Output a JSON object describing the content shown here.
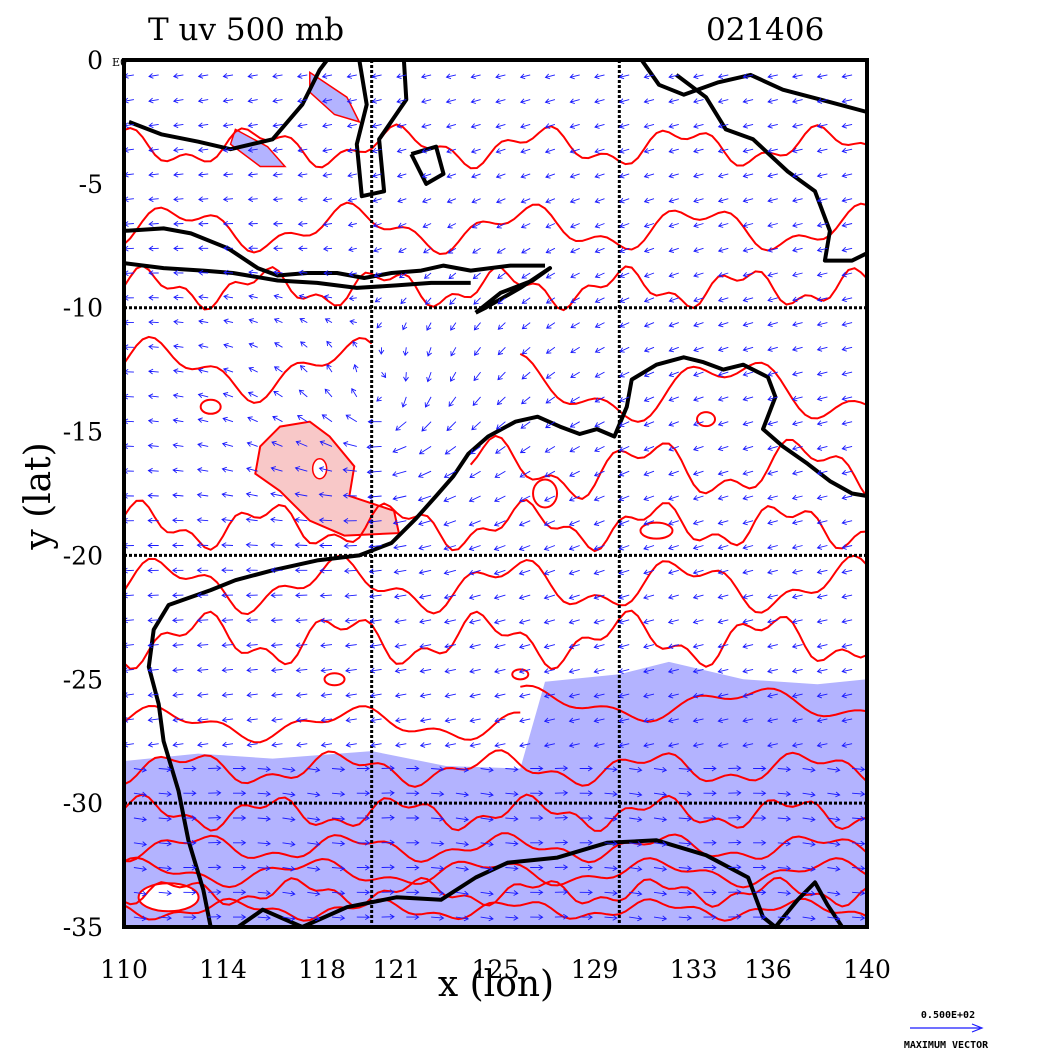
{
  "chart_data": {
    "type": "map-contour-vector",
    "title": "T uv 500 mb",
    "timestamp": "021406",
    "xlabel": "x (lon)",
    "ylabel": "y (lat)",
    "xlim": [
      110,
      140
    ],
    "ylim": [
      -35,
      0
    ],
    "x_ticks": [
      {
        "value": 110,
        "label": "110"
      },
      {
        "value": 114,
        "label": "114"
      },
      {
        "value": 118,
        "label": "118"
      },
      {
        "value": 121,
        "label": "121"
      },
      {
        "value": 125,
        "label": "125"
      },
      {
        "value": 129,
        "label": "129"
      },
      {
        "value": 133,
        "label": "133"
      },
      {
        "value": 136,
        "label": "136"
      },
      {
        "value": 140,
        "label": "140"
      }
    ],
    "y_ticks": [
      {
        "value": 0,
        "label": "0"
      },
      {
        "value": -5,
        "label": "-5"
      },
      {
        "value": -10,
        "label": "-10"
      },
      {
        "value": -15,
        "label": "-15"
      },
      {
        "value": -20,
        "label": "-20"
      },
      {
        "value": -25,
        "label": "-25"
      },
      {
        "value": -30,
        "label": "-30"
      },
      {
        "value": -35,
        "label": "-35"
      }
    ],
    "y_top_suffix": "E0",
    "grid_lon": [
      120,
      130
    ],
    "grid_lat": [
      -10,
      -20,
      -30
    ],
    "warm_anomaly": {
      "center": [
        117.7,
        -16.8
      ],
      "color": "#f8c8c8"
    },
    "cold_region": {
      "north_lat_west": -28.3,
      "north_lat_east": -25.5,
      "color": "#b3b3ff"
    },
    "cyclone_center": [
      120.5,
      -14.2
    ],
    "vector_color": "#1a1aff",
    "contour_color": "#ff0000",
    "coast_color": "#000000",
    "reference_vector": {
      "value": "0.500E+02",
      "label": "MAXIMUM VECTOR"
    }
  }
}
